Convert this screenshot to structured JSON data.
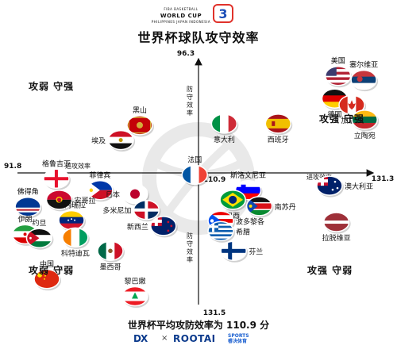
{
  "header": {
    "logo_line1": "FIBA BASKETBALL",
    "logo_line2": "WORLD CUP",
    "logo_line3": "PHILIPPINES JAPAN INDONESIA",
    "title": "世界杯球队攻守效率"
  },
  "quadrants": {
    "top_left": "攻弱 守强",
    "top_right": "攻强 守强",
    "bottom_left": "攻弱 守弱",
    "bottom_right": "攻强 守弱"
  },
  "footer": {
    "title": "世界杯平均攻防效率为 110.9 分",
    "brand_left": "DX",
    "brand_sep": "×",
    "brand_right": "ROOTAI",
    "brand_tag_1": "SPORTS",
    "brand_tag_2": "睿决体育"
  },
  "chart_data": {
    "type": "scatter",
    "title": "世界杯球队攻守效率",
    "xlabel": "进攻效率",
    "ylabel": "防守效率",
    "x_axis": {
      "min": 91.8,
      "max": 131.3,
      "tick_labels": [
        "91.8",
        "131.3"
      ]
    },
    "y_axis": {
      "top": 96.3,
      "bottom": 131.5,
      "inverted": true,
      "tick_labels": [
        "96.3",
        "131.5"
      ]
    },
    "average_x": 110.9,
    "average_y": 110.9,
    "average_x_label": "110.9",
    "grid": false,
    "points": [
      {
        "name": "美国",
        "x": 127.2,
        "y": 98.5,
        "flag": "us",
        "label_pos": "above"
      },
      {
        "name": "塞尔维亚",
        "x": 130.2,
        "y": 99.0,
        "flag": "rs",
        "label_pos": "above"
      },
      {
        "name": "德国",
        "x": 126.8,
        "y": 101.4,
        "flag": "de",
        "label_pos": "below"
      },
      {
        "name": "加拿大",
        "x": 128.8,
        "y": 102.2,
        "flag": "ca",
        "label_pos": "below"
      },
      {
        "name": "立陶宛",
        "x": 130.3,
        "y": 104.1,
        "flag": "lt",
        "label_pos": "below"
      },
      {
        "name": "黑山",
        "x": 104.7,
        "y": 104.8,
        "flag": "me",
        "label_pos": "above"
      },
      {
        "name": "意大利",
        "x": 113.9,
        "y": 104.6,
        "flag": "it",
        "label_pos": "below"
      },
      {
        "name": "西班牙",
        "x": 120.2,
        "y": 104.6,
        "flag": "es",
        "label_pos": "below"
      },
      {
        "name": "埃及",
        "x": 102.7,
        "y": 106.7,
        "flag": "eg",
        "label_pos": "left"
      },
      {
        "name": "法国",
        "x": 110.5,
        "y": 111.2,
        "flag": "fr",
        "label_pos": "above"
      },
      {
        "name": "格鲁吉亚",
        "x": 95.9,
        "y": 111.8,
        "flag": "ge",
        "label_pos": "above"
      },
      {
        "name": "菲律宾",
        "x": 100.5,
        "y": 113.6,
        "flag": "ph",
        "label_pos": "above"
      },
      {
        "name": "日本",
        "x": 104.2,
        "y": 114.2,
        "flag": "jp",
        "label_pos": "left"
      },
      {
        "name": "斯洛文尼亚",
        "x": 116.7,
        "y": 113.6,
        "flag": "si",
        "label_pos": "above"
      },
      {
        "name": "澳大利亚",
        "x": 126.2,
        "y": 112.9,
        "flag": "au",
        "label_pos": "right"
      },
      {
        "name": "安哥拉",
        "x": 96.2,
        "y": 115.1,
        "flag": "ao",
        "label_pos": "right"
      },
      {
        "name": "巴西",
        "x": 114.9,
        "y": 115.1,
        "flag": "br",
        "label_pos": "below"
      },
      {
        "name": "南苏丹",
        "x": 118.0,
        "y": 116.1,
        "flag": "ss",
        "label_pos": "right"
      },
      {
        "name": "佛得角",
        "x": 92.9,
        "y": 116.2,
        "flag": "cv",
        "label_pos": "above"
      },
      {
        "name": "多米尼加",
        "x": 105.4,
        "y": 116.7,
        "flag": "do",
        "label_pos": "left"
      },
      {
        "name": "委内瑞拉",
        "x": 97.5,
        "y": 118.3,
        "flag": "ve",
        "label_pos": "above"
      },
      {
        "name": "波多黎各",
        "x": 113.5,
        "y": 118.4,
        "flag": "pr",
        "label_pos": "right"
      },
      {
        "name": "拉脱维亚",
        "x": 127.0,
        "y": 118.6,
        "flag": "lv",
        "label_pos": "below"
      },
      {
        "name": "新西兰",
        "x": 107.2,
        "y": 119.2,
        "flag": "nz",
        "label_pos": "left"
      },
      {
        "name": "伊朗",
        "x": 92.6,
        "y": 120.5,
        "flag": "ir",
        "label_pos": "above"
      },
      {
        "name": "约旦",
        "x": 94.1,
        "y": 121.1,
        "flag": "jo",
        "label_pos": "above"
      },
      {
        "name": "希腊",
        "x": 113.5,
        "y": 120.0,
        "flag": "gr",
        "label_pos": "right"
      },
      {
        "name": "科特迪瓦",
        "x": 97.9,
        "y": 121.0,
        "flag": "ci",
        "label_pos": "below"
      },
      {
        "name": "墨西哥",
        "x": 101.6,
        "y": 123.1,
        "flag": "mx",
        "label_pos": "below"
      },
      {
        "name": "芬兰",
        "x": 115.0,
        "y": 123.1,
        "flag": "fi",
        "label_pos": "right"
      },
      {
        "name": "中国",
        "x": 94.9,
        "y": 127.5,
        "flag": "cn",
        "label_pos": "above"
      },
      {
        "name": "黎巴嫩",
        "x": 104.2,
        "y": 130.2,
        "flag": "lb",
        "label_pos": "above"
      }
    ]
  }
}
